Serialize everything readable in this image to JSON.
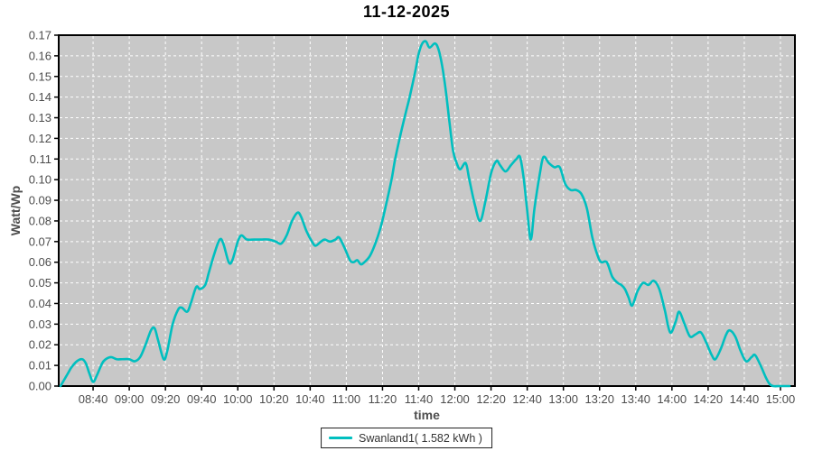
{
  "title": "11-12-2025",
  "legend": {
    "label": "Swanland1( 1.582 kWh )"
  },
  "colors": {
    "line": "#00BFBF",
    "plot_bg": "#C8C8C8",
    "grid": "#FFFFFF",
    "border": "#000000",
    "tick_text": "#4D4D4D",
    "axis_title_text": "#4D4D4D",
    "title_text": "#000000"
  },
  "chart_data": {
    "type": "line",
    "title": "11-12-2025",
    "xlabel": "time",
    "ylabel": "Watt/Wp",
    "ylim": [
      0.0,
      0.17
    ],
    "y_tick_step": 0.01,
    "grid": "on (white dashed over gray panel)",
    "legend_position": "bottom-center",
    "x_axis_minutes_range": [
      501,
      908
    ],
    "y_ticks": [
      "0.00",
      "0.01",
      "0.02",
      "0.03",
      "0.04",
      "0.05",
      "0.06",
      "0.07",
      "0.08",
      "0.09",
      "0.10",
      "0.11",
      "0.12",
      "0.13",
      "0.14",
      "0.15",
      "0.16",
      "0.17"
    ],
    "x_ticks": [
      "08:40",
      "09:00",
      "09:20",
      "09:40",
      "10:00",
      "10:20",
      "10:40",
      "11:00",
      "11:20",
      "11:40",
      "12:00",
      "12:20",
      "12:40",
      "13:00",
      "13:20",
      "13:40",
      "14:00",
      "14:20",
      "14:40",
      "15:00"
    ],
    "series": [
      {
        "name": "Swanland1( 1.582 kWh )",
        "color": "#00BFBF",
        "points": [
          [
            "08:22",
            0.0
          ],
          [
            "08:24",
            0.003
          ],
          [
            "08:26",
            0.006
          ],
          [
            "08:28",
            0.009
          ],
          [
            "08:31",
            0.012
          ],
          [
            "08:34",
            0.013
          ],
          [
            "08:36",
            0.011
          ],
          [
            "08:38",
            0.006
          ],
          [
            "08:40",
            0.002
          ],
          [
            "08:42",
            0.005
          ],
          [
            "08:45",
            0.011
          ],
          [
            "08:47",
            0.013
          ],
          [
            "08:50",
            0.014
          ],
          [
            "08:53",
            0.013
          ],
          [
            "08:56",
            0.013
          ],
          [
            "09:00",
            0.013
          ],
          [
            "09:03",
            0.012
          ],
          [
            "09:06",
            0.014
          ],
          [
            "09:09",
            0.02
          ],
          [
            "09:12",
            0.027
          ],
          [
            "09:14",
            0.028
          ],
          [
            "09:16",
            0.022
          ],
          [
            "09:19",
            0.013
          ],
          [
            "09:21",
            0.017
          ],
          [
            "09:24",
            0.03
          ],
          [
            "09:27",
            0.037
          ],
          [
            "09:29",
            0.038
          ],
          [
            "09:32",
            0.036
          ],
          [
            "09:34",
            0.04
          ],
          [
            "09:37",
            0.048
          ],
          [
            "09:39",
            0.047
          ],
          [
            "09:42",
            0.049
          ],
          [
            "09:44",
            0.055
          ],
          [
            "09:47",
            0.064
          ],
          [
            "09:50",
            0.071
          ],
          [
            "09:52",
            0.069
          ],
          [
            "09:55",
            0.06
          ],
          [
            "09:57",
            0.061
          ],
          [
            "10:00",
            0.07
          ],
          [
            "10:02",
            0.073
          ],
          [
            "10:05",
            0.071
          ],
          [
            "10:09",
            0.071
          ],
          [
            "10:13",
            0.071
          ],
          [
            "10:17",
            0.071
          ],
          [
            "10:21",
            0.07
          ],
          [
            "10:24",
            0.069
          ],
          [
            "10:27",
            0.073
          ],
          [
            "10:30",
            0.08
          ],
          [
            "10:33",
            0.084
          ],
          [
            "10:35",
            0.082
          ],
          [
            "10:38",
            0.075
          ],
          [
            "10:41",
            0.07
          ],
          [
            "10:43",
            0.068
          ],
          [
            "10:46",
            0.07
          ],
          [
            "10:48",
            0.071
          ],
          [
            "10:51",
            0.07
          ],
          [
            "10:54",
            0.071
          ],
          [
            "10:56",
            0.072
          ],
          [
            "10:59",
            0.067
          ],
          [
            "11:02",
            0.061
          ],
          [
            "11:04",
            0.06
          ],
          [
            "11:06",
            0.061
          ],
          [
            "11:08",
            0.059
          ],
          [
            "11:10",
            0.06
          ],
          [
            "11:13",
            0.063
          ],
          [
            "11:16",
            0.069
          ],
          [
            "11:19",
            0.077
          ],
          [
            "11:22",
            0.088
          ],
          [
            "11:25",
            0.1
          ],
          [
            "11:27",
            0.11
          ],
          [
            "11:30",
            0.122
          ],
          [
            "11:33",
            0.133
          ],
          [
            "11:35",
            0.14
          ],
          [
            "11:38",
            0.152
          ],
          [
            "11:40",
            0.161
          ],
          [
            "11:42",
            0.166
          ],
          [
            "11:44",
            0.167
          ],
          [
            "11:46",
            0.164
          ],
          [
            "11:49",
            0.166
          ],
          [
            "11:51",
            0.163
          ],
          [
            "11:53",
            0.155
          ],
          [
            "11:55",
            0.143
          ],
          [
            "11:57",
            0.128
          ],
          [
            "11:59",
            0.114
          ],
          [
            "12:01",
            0.108
          ],
          [
            "12:03",
            0.105
          ],
          [
            "12:06",
            0.108
          ],
          [
            "12:08",
            0.1
          ],
          [
            "12:11",
            0.088
          ],
          [
            "12:14",
            0.08
          ],
          [
            "12:17",
            0.09
          ],
          [
            "12:20",
            0.103
          ],
          [
            "12:23",
            0.109
          ],
          [
            "12:25",
            0.107
          ],
          [
            "12:28",
            0.104
          ],
          [
            "12:31",
            0.107
          ],
          [
            "12:34",
            0.11
          ],
          [
            "12:36",
            0.111
          ],
          [
            "12:38",
            0.101
          ],
          [
            "12:40",
            0.085
          ],
          [
            "12:42",
            0.071
          ],
          [
            "12:44",
            0.086
          ],
          [
            "12:47",
            0.103
          ],
          [
            "12:49",
            0.111
          ],
          [
            "12:52",
            0.108
          ],
          [
            "12:55",
            0.106
          ],
          [
            "12:58",
            0.106
          ],
          [
            "13:01",
            0.098
          ],
          [
            "13:04",
            0.095
          ],
          [
            "13:07",
            0.095
          ],
          [
            "13:10",
            0.093
          ],
          [
            "13:13",
            0.086
          ],
          [
            "13:16",
            0.072
          ],
          [
            "13:19",
            0.063
          ],
          [
            "13:21",
            0.06
          ],
          [
            "13:24",
            0.06
          ],
          [
            "13:27",
            0.053
          ],
          [
            "13:30",
            0.05
          ],
          [
            "13:32",
            0.049
          ],
          [
            "13:34",
            0.047
          ],
          [
            "13:36",
            0.043
          ],
          [
            "13:38",
            0.039
          ],
          [
            "13:41",
            0.046
          ],
          [
            "13:44",
            0.05
          ],
          [
            "13:47",
            0.049
          ],
          [
            "13:50",
            0.051
          ],
          [
            "13:53",
            0.047
          ],
          [
            "13:56",
            0.037
          ],
          [
            "13:59",
            0.026
          ],
          [
            "14:02",
            0.031
          ],
          [
            "14:04",
            0.036
          ],
          [
            "14:07",
            0.03
          ],
          [
            "14:10",
            0.024
          ],
          [
            "14:13",
            0.025
          ],
          [
            "14:16",
            0.026
          ],
          [
            "14:19",
            0.021
          ],
          [
            "14:22",
            0.015
          ],
          [
            "14:24",
            0.013
          ],
          [
            "14:27",
            0.018
          ],
          [
            "14:30",
            0.025
          ],
          [
            "14:32",
            0.027
          ],
          [
            "14:35",
            0.024
          ],
          [
            "14:38",
            0.017
          ],
          [
            "14:41",
            0.012
          ],
          [
            "14:44",
            0.014
          ],
          [
            "14:46",
            0.015
          ],
          [
            "14:49",
            0.01
          ],
          [
            "14:52",
            0.004
          ],
          [
            "14:54",
            0.001
          ],
          [
            "14:56",
            0.0
          ],
          [
            "15:00",
            0.0
          ],
          [
            "15:05",
            0.0
          ]
        ]
      }
    ]
  }
}
